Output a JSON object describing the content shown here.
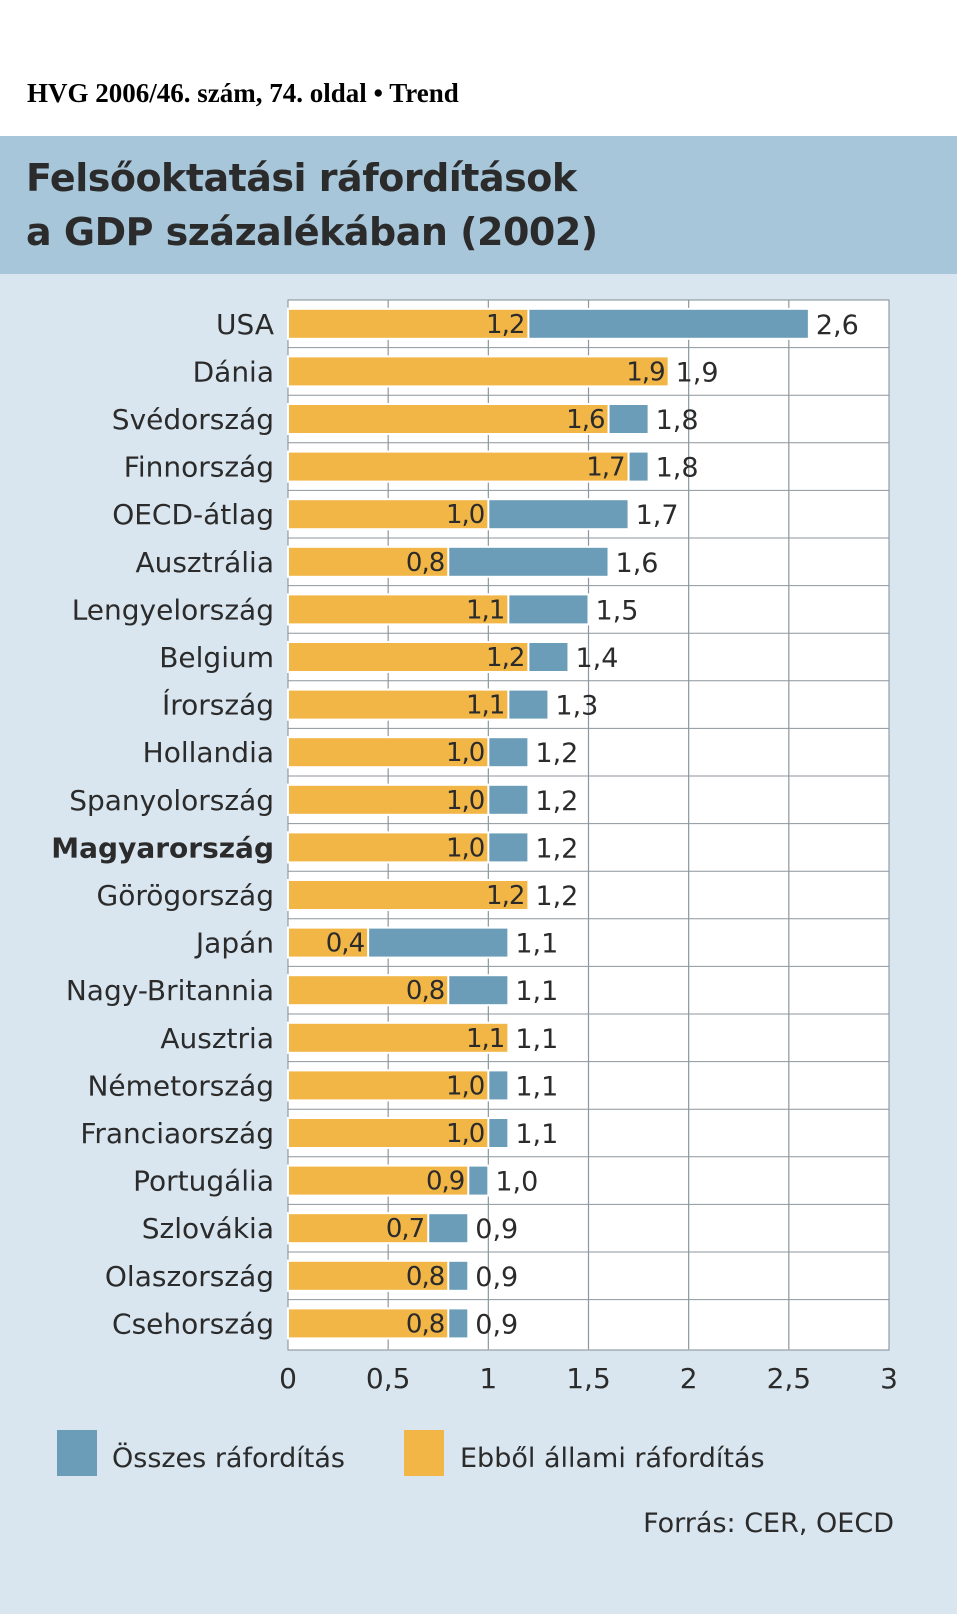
{
  "caption": "HVG 2006/46. szám, 74. oldal • Trend",
  "title_line1": "Felsőoktatási ráfordítások",
  "title_line2": "a GDP százalékában (2002)",
  "source": "Forrás: CER, OECD",
  "colors": {
    "total": "#6b9db8",
    "public": "#f2b646",
    "panel": "#d9e6ef",
    "title_band": "#a7c6d9"
  },
  "chart_data": {
    "type": "bar",
    "orientation": "horizontal",
    "title": "Felsőoktatási ráfordítások a GDP százalékában (2002)",
    "xlim": [
      0,
      3
    ],
    "xticks": [
      0,
      0.5,
      1,
      1.5,
      2,
      2.5,
      3
    ],
    "xtick_labels": [
      "0",
      "0,5",
      "1",
      "1,5",
      "2",
      "2,5",
      "3"
    ],
    "highlight": "Magyarország",
    "categories": [
      "USA",
      "Dánia",
      "Svédország",
      "Finnország",
      "OECD-átlag",
      "Ausztrália",
      "Lengyelország",
      "Belgium",
      "Írország",
      "Hollandia",
      "Spanyolország",
      "Magyarország",
      "Görögország",
      "Japán",
      "Nagy-Britannia",
      "Ausztria",
      "Németország",
      "Franciaország",
      "Portugália",
      "Szlovákia",
      "Olaszország",
      "Csehország"
    ],
    "series": [
      {
        "name": "Összes ráfordítás",
        "values": [
          2.6,
          1.9,
          1.8,
          1.8,
          1.7,
          1.6,
          1.5,
          1.4,
          1.3,
          1.2,
          1.2,
          1.2,
          1.2,
          1.1,
          1.1,
          1.1,
          1.1,
          1.1,
          1.0,
          0.9,
          0.9,
          0.9
        ],
        "labels": [
          "2,6",
          "1,9",
          "1,8",
          "1,8",
          "1,7",
          "1,6",
          "1,5",
          "1,4",
          "1,3",
          "1,2",
          "1,2",
          "1,2",
          "1,2",
          "1,1",
          "1,1",
          "1,1",
          "1,1",
          "1,1",
          "1,0",
          "0,9",
          "0,9",
          "0,9"
        ]
      },
      {
        "name": "Ebből állami ráfordítás",
        "values": [
          1.2,
          1.9,
          1.6,
          1.7,
          1.0,
          0.8,
          1.1,
          1.2,
          1.1,
          1.0,
          1.0,
          1.0,
          1.2,
          0.4,
          0.8,
          1.1,
          1.0,
          1.0,
          0.9,
          0.7,
          0.8,
          0.8
        ],
        "labels": [
          "1,2",
          "1,9",
          "1,6",
          "1,7",
          "1,0",
          "0,8",
          "1,1",
          "1,2",
          "1,1",
          "1,0",
          "1,0",
          "1,0",
          "1,2",
          "0,4",
          "0,8",
          "1,1",
          "1,0",
          "1,0",
          "0,9",
          "0,7",
          "0,8",
          "0,8"
        ]
      }
    ],
    "legend": [
      "Összes ráfordítás",
      "Ebből állami ráfordítás"
    ],
    "legend_position": "bottom"
  }
}
